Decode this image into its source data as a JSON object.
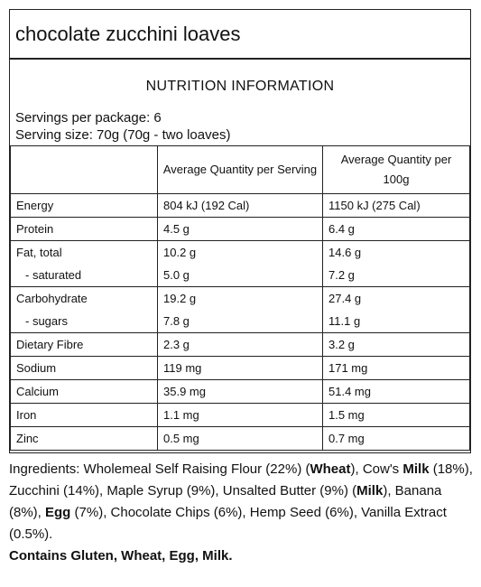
{
  "title": "chocolate zucchini loaves",
  "heading": "NUTRITION INFORMATION",
  "servings_per_package": "Servings per package: 6",
  "serving_size": "Serving size: 70g (70g - two loaves)",
  "table": {
    "headers": [
      "",
      "Average Quantity per Serving",
      "Average Quantity per 100g"
    ],
    "rows": [
      {
        "label": "Energy",
        "serving": "804 kJ (192 Cal)",
        "per100": "1150 kJ (275 Cal)"
      },
      {
        "label": "Protein",
        "serving": "4.5 g",
        "per100": "6.4 g"
      },
      {
        "label": "Fat, total",
        "serving": "10.2 g",
        "per100": "14.6 g",
        "sub": {
          "label": "- saturated",
          "serving": "5.0 g",
          "per100": "7.2 g"
        }
      },
      {
        "label": "Carbohydrate",
        "serving": "19.2 g",
        "per100": "27.4 g",
        "sub": {
          "label": "- sugars",
          "serving": "7.8 g",
          "per100": "11.1 g"
        }
      },
      {
        "label": "Dietary Fibre",
        "serving": "2.3 g",
        "per100": "3.2 g"
      },
      {
        "label": "Sodium",
        "serving": "119 mg",
        "per100": "171 mg"
      },
      {
        "label": "Calcium",
        "serving": "35.9 mg",
        "per100": "51.4 mg"
      },
      {
        "label": "Iron",
        "serving": "1.1 mg",
        "per100": "1.5 mg"
      },
      {
        "label": "Zinc",
        "serving": "0.5 mg",
        "per100": "0.7 mg"
      }
    ]
  },
  "ingredients": {
    "prefix": "Ingredients: Wholemeal Self Raising Flour (22%) (",
    "wheat": "Wheat",
    "p2": "), Cow's ",
    "milk1": "Milk",
    "p3": " (18%), Zucchini (14%), Maple Syrup (9%), Unsalted Butter (9%) (",
    "milk2": "Milk",
    "p4": "), Banana (8%), ",
    "egg": "Egg",
    "p5": " (7%), Chocolate Chips (6%), Hemp Seed (6%), Vanilla Extract (0.5%)."
  },
  "contains": "Contains Gluten, Wheat, Egg, Milk."
}
